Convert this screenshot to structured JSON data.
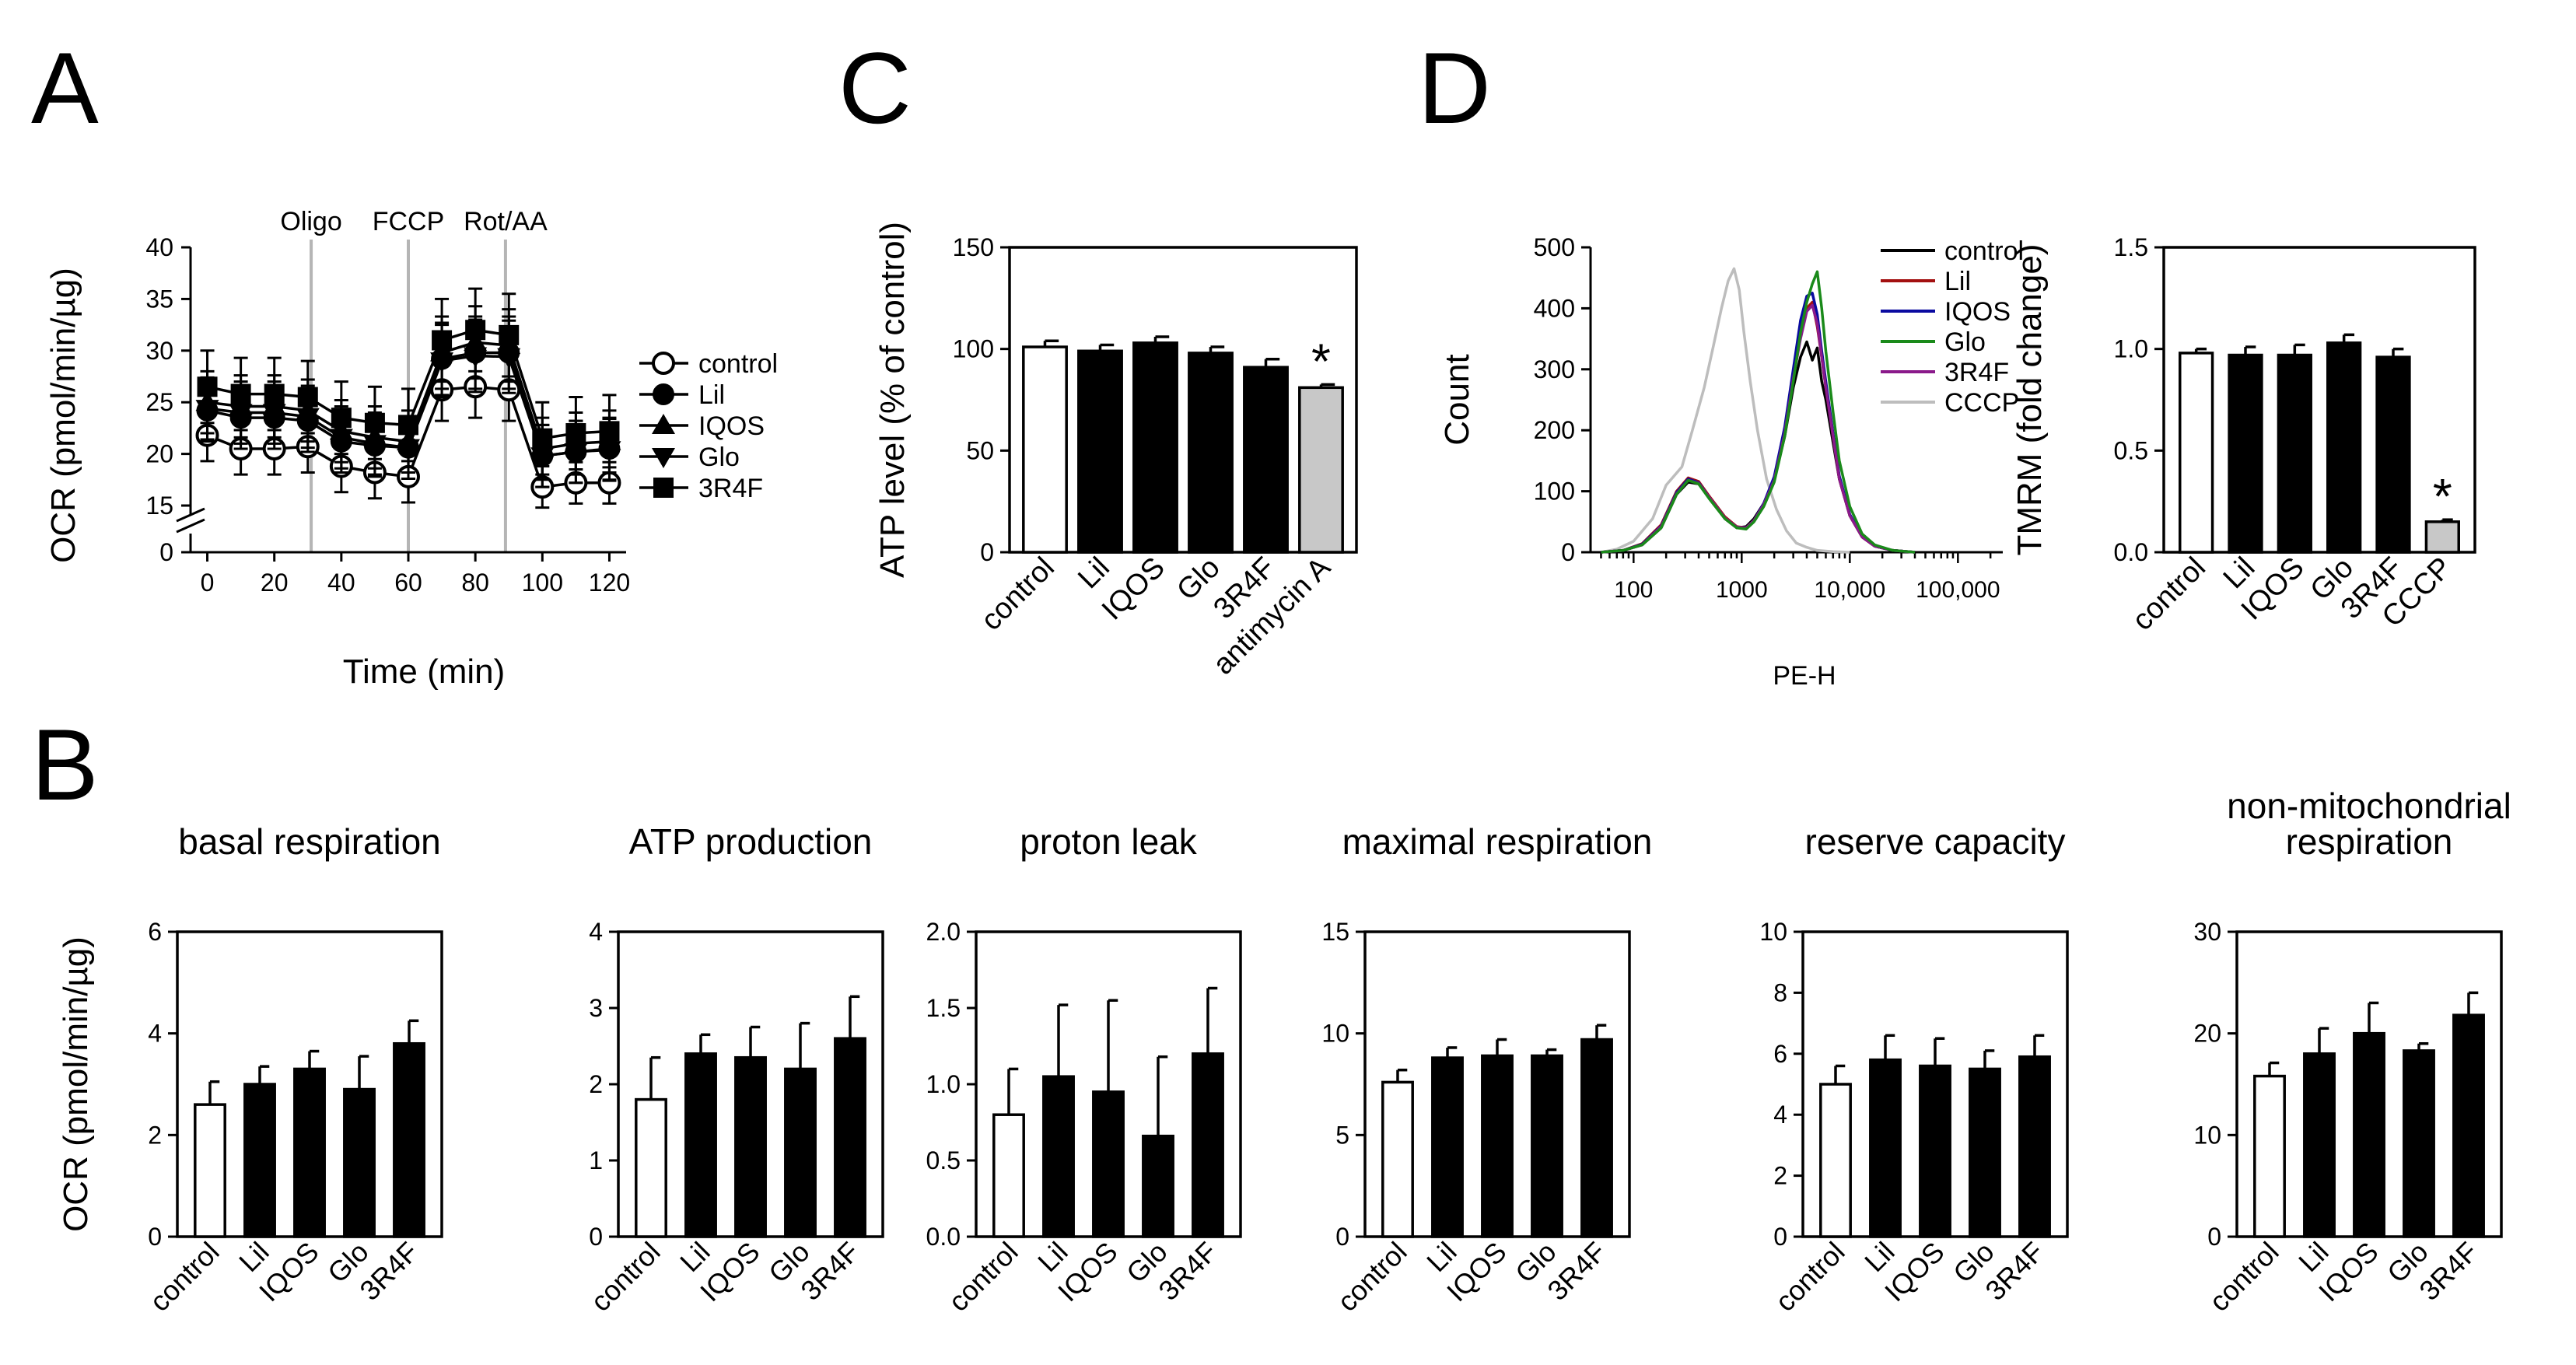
{
  "panels": {
    "A": "A",
    "B": "B",
    "C": "C",
    "D": "D"
  },
  "chart_data": [
    {
      "id": "A",
      "type": "line",
      "title": "",
      "xlabel": "Time (min)",
      "ylabel": "OCR (pmol/min/µg)",
      "x": [
        0,
        10,
        20,
        30,
        40,
        50,
        60,
        70,
        80,
        90,
        100,
        110,
        120
      ],
      "xticks": [
        0,
        20,
        40,
        60,
        80,
        100,
        120
      ],
      "xlim": [
        -5,
        125
      ],
      "yticks": [
        0,
        15,
        20,
        25,
        30,
        35,
        40
      ],
      "ylim": [
        0,
        40
      ],
      "ybreak": [
        0,
        13
      ],
      "annotations": [
        {
          "text": "Oligo",
          "x": 31
        },
        {
          "text": "FCCP",
          "x": 60
        },
        {
          "text": "Rot/AA",
          "x": 89
        }
      ],
      "series": [
        {
          "name": "control",
          "marker": "circle-open",
          "values": [
            21.8,
            20.5,
            20.5,
            20.7,
            18.8,
            18.2,
            17.8,
            26.2,
            26.5,
            26.2,
            16.8,
            17.2,
            17.2
          ],
          "errors": [
            2.5,
            2.5,
            2.5,
            2.5,
            2.5,
            2.5,
            2.5,
            3,
            3,
            3,
            2,
            2,
            2
          ]
        },
        {
          "name": "Lil",
          "marker": "circle-filled",
          "values": [
            24.2,
            23.5,
            23.5,
            23.2,
            21.2,
            20.8,
            20.6,
            29.2,
            29.8,
            29.8,
            19.8,
            20.2,
            20.5
          ],
          "errors": [
            3,
            3,
            3,
            3,
            3,
            3,
            3,
            3.5,
            3.5,
            3.5,
            3,
            3,
            3
          ]
        },
        {
          "name": "IQOS",
          "marker": "triangle-up",
          "values": [
            25.0,
            24.6,
            24.6,
            24.2,
            22.2,
            21.6,
            21.2,
            29.8,
            30.8,
            30.5,
            20.5,
            21.0,
            21.2
          ],
          "errors": [
            3,
            3,
            3,
            3,
            3,
            3,
            3,
            3.5,
            3.5,
            3.5,
            3,
            3,
            3
          ]
        },
        {
          "name": "Glo",
          "marker": "triangle-down",
          "values": [
            24.4,
            24.0,
            24.0,
            23.6,
            21.6,
            21.0,
            20.6,
            29.0,
            29.5,
            29.4,
            19.8,
            20.2,
            20.4
          ],
          "errors": [
            3,
            3,
            3,
            3,
            3,
            3,
            3,
            3.5,
            3.5,
            3.5,
            3,
            3,
            3
          ]
        },
        {
          "name": "3R4F",
          "marker": "square",
          "values": [
            26.5,
            25.8,
            25.8,
            25.5,
            23.5,
            23.0,
            22.8,
            31.0,
            32.0,
            31.5,
            21.5,
            22.0,
            22.2
          ],
          "errors": [
            3.5,
            3.5,
            3.5,
            3.5,
            3.5,
            3.5,
            3.5,
            4,
            4,
            4,
            3.5,
            3.5,
            3.5
          ]
        }
      ]
    },
    {
      "id": "C",
      "type": "bar",
      "ylabel": "ATP level (% of control)",
      "categories": [
        "control",
        "Lil",
        "IQOS",
        "Glo",
        "3R4F",
        "antimycin A"
      ],
      "values": [
        101,
        99,
        103,
        98,
        91,
        81
      ],
      "errors": [
        3,
        3,
        3,
        3,
        4,
        1.5
      ],
      "fills": [
        "open",
        "filled",
        "filled",
        "filled",
        "filled",
        "gray"
      ],
      "significant": [
        false,
        false,
        false,
        false,
        false,
        true
      ],
      "ylim": [
        0,
        150
      ],
      "yticks": [
        0,
        50,
        100,
        150
      ],
      "ytick_labels": [
        "0",
        "50",
        "100",
        "150"
      ]
    },
    {
      "id": "D1",
      "type": "line",
      "ylabel": "Count",
      "xlabel": "PE-H",
      "xscale": "log",
      "xlim": [
        40,
        260000
      ],
      "ylim": [
        0,
        500
      ],
      "yticks": [
        0,
        100,
        200,
        300,
        400,
        500
      ],
      "xticks": [
        100,
        1000,
        10000,
        100000
      ],
      "xtick_labels": [
        "100",
        "1000",
        "10,000",
        "100,000"
      ],
      "legend_position": "top-right",
      "series": [
        {
          "name": "control",
          "color": "#000000",
          "x": [
            50,
            80,
            120,
            180,
            250,
            320,
            400,
            500,
            700,
            900,
            1100,
            1300,
            1600,
            2000,
            2500,
            3000,
            3500,
            4000,
            4500,
            5000,
            5500,
            6000,
            7000,
            8000,
            10000,
            13000,
            17000,
            25000,
            40000
          ],
          "values": [
            0,
            3,
            12,
            40,
            95,
            115,
            112,
            90,
            55,
            40,
            42,
            55,
            80,
            120,
            190,
            270,
            320,
            345,
            315,
            335,
            280,
            250,
            180,
            120,
            60,
            25,
            10,
            3,
            0
          ]
        },
        {
          "name": "Lil",
          "color": "#a31010",
          "x": [
            50,
            80,
            120,
            180,
            250,
            320,
            400,
            500,
            700,
            900,
            1100,
            1300,
            1600,
            2000,
            2500,
            3000,
            3500,
            4000,
            4500,
            5000,
            5500,
            6000,
            7000,
            8000,
            10000,
            13000,
            17000,
            25000,
            40000
          ],
          "values": [
            0,
            3,
            14,
            45,
            100,
            122,
            116,
            92,
            58,
            42,
            40,
            52,
            78,
            120,
            200,
            290,
            360,
            400,
            410,
            370,
            320,
            270,
            190,
            120,
            60,
            25,
            10,
            3,
            0
          ]
        },
        {
          "name": "IQOS",
          "color": "#0a0aa0",
          "x": [
            50,
            80,
            120,
            180,
            250,
            320,
            400,
            500,
            700,
            900,
            1100,
            1300,
            1600,
            2000,
            2500,
            3000,
            3500,
            4000,
            4500,
            5000,
            5500,
            6000,
            7000,
            8000,
            10000,
            13000,
            17000,
            25000,
            40000
          ],
          "values": [
            0,
            3,
            13,
            43,
            98,
            120,
            114,
            90,
            56,
            41,
            40,
            52,
            80,
            124,
            205,
            300,
            380,
            420,
            425,
            390,
            330,
            280,
            195,
            125,
            62,
            26,
            10,
            3,
            0
          ]
        },
        {
          "name": "Glo",
          "color": "#1a8a1a",
          "x": [
            50,
            80,
            120,
            180,
            250,
            320,
            400,
            500,
            700,
            900,
            1100,
            1300,
            1600,
            2000,
            2500,
            3000,
            3500,
            4000,
            4500,
            5000,
            5500,
            6000,
            7000,
            8000,
            10000,
            13000,
            17000,
            25000,
            40000
          ],
          "values": [
            0,
            3,
            12,
            40,
            95,
            118,
            112,
            88,
            55,
            40,
            38,
            50,
            75,
            115,
            190,
            280,
            360,
            410,
            440,
            460,
            400,
            330,
            230,
            150,
            75,
            30,
            12,
            3,
            0
          ]
        },
        {
          "name": "3R4F",
          "color": "#8a1a8a",
          "x": [
            50,
            80,
            120,
            180,
            250,
            320,
            400,
            500,
            700,
            900,
            1100,
            1300,
            1600,
            2000,
            2500,
            3000,
            3500,
            4000,
            4500,
            5000,
            5500,
            6000,
            7000,
            8000,
            10000,
            13000,
            17000,
            25000,
            40000
          ],
          "values": [
            0,
            3,
            12,
            42,
            96,
            118,
            113,
            90,
            56,
            41,
            40,
            52,
            78,
            118,
            195,
            285,
            350,
            395,
            405,
            375,
            320,
            270,
            190,
            120,
            60,
            25,
            10,
            3,
            0
          ]
        },
        {
          "name": "CCCP",
          "color": "#bdbdbd",
          "x": [
            50,
            70,
            100,
            150,
            200,
            280,
            350,
            450,
            550,
            650,
            750,
            850,
            950,
            1050,
            1200,
            1400,
            1700,
            2100,
            2600,
            3200,
            4000,
            5000,
            7000,
            10000
          ],
          "values": [
            0,
            5,
            18,
            55,
            110,
            140,
            200,
            270,
            340,
            400,
            445,
            465,
            430,
            360,
            280,
            200,
            120,
            70,
            35,
            15,
            8,
            3,
            1,
            0
          ]
        }
      ]
    },
    {
      "id": "D2",
      "type": "bar",
      "ylabel": "TMRM (fold change)",
      "categories": [
        "control",
        "Lil",
        "IQOS",
        "Glo",
        "3R4F",
        "CCCP"
      ],
      "values": [
        0.98,
        0.97,
        0.97,
        1.03,
        0.96,
        0.15
      ],
      "errors": [
        0.02,
        0.04,
        0.05,
        0.04,
        0.04,
        0.01
      ],
      "fills": [
        "open",
        "filled",
        "filled",
        "filled",
        "filled",
        "gray"
      ],
      "significant": [
        false,
        false,
        false,
        false,
        false,
        true
      ],
      "ylim": [
        0,
        1.5
      ],
      "yticks": [
        0,
        0.5,
        1.0,
        1.5
      ],
      "ytick_labels": [
        "0.0",
        "0.5",
        "1.0",
        "1.5"
      ]
    },
    {
      "id": "B1",
      "type": "bar",
      "title": "basal respiration",
      "ylabel": "OCR (pmol/min/µg)",
      "categories": [
        "control",
        "Lil",
        "IQOS",
        "Glo",
        "3R4F"
      ],
      "values": [
        2.6,
        3.0,
        3.3,
        2.9,
        3.8
      ],
      "errors": [
        0.45,
        0.35,
        0.35,
        0.65,
        0.45
      ],
      "fills": [
        "open",
        "filled",
        "filled",
        "filled",
        "filled"
      ],
      "ylim": [
        0,
        6
      ],
      "yticks": [
        0,
        2,
        4,
        6
      ],
      "ytick_labels": [
        "0",
        "2",
        "4",
        "6"
      ]
    },
    {
      "id": "B2",
      "type": "bar",
      "title": "ATP production",
      "ylabel": "",
      "categories": [
        "control",
        "Lil",
        "IQOS",
        "Glo",
        "3R4F"
      ],
      "values": [
        1.8,
        2.4,
        2.35,
        2.2,
        2.6
      ],
      "errors": [
        0.55,
        0.25,
        0.4,
        0.6,
        0.55
      ],
      "fills": [
        "open",
        "filled",
        "filled",
        "filled",
        "filled"
      ],
      "ylim": [
        0,
        4
      ],
      "yticks": [
        0,
        1,
        2,
        3,
        4
      ],
      "ytick_labels": [
        "0",
        "1",
        "2",
        "3",
        "4"
      ]
    },
    {
      "id": "B3",
      "type": "bar",
      "title": "proton leak",
      "ylabel": "",
      "categories": [
        "control",
        "Lil",
        "IQOS",
        "Glo",
        "3R4F"
      ],
      "values": [
        0.8,
        1.05,
        0.95,
        0.66,
        1.2
      ],
      "errors": [
        0.3,
        0.47,
        0.6,
        0.52,
        0.43
      ],
      "fills": [
        "open",
        "filled",
        "filled",
        "filled",
        "filled"
      ],
      "ylim": [
        0,
        2
      ],
      "yticks": [
        0,
        0.5,
        1.0,
        1.5,
        2.0
      ],
      "ytick_labels": [
        "0.0",
        "0.5",
        "1.0",
        "1.5",
        "2.0"
      ]
    },
    {
      "id": "B4",
      "type": "bar",
      "title": "maximal respiration",
      "ylabel": "",
      "categories": [
        "control",
        "Lil",
        "IQOS",
        "Glo",
        "3R4F"
      ],
      "values": [
        7.6,
        8.8,
        8.9,
        8.9,
        9.7
      ],
      "errors": [
        0.6,
        0.5,
        0.8,
        0.3,
        0.7
      ],
      "fills": [
        "open",
        "filled",
        "filled",
        "filled",
        "filled"
      ],
      "ylim": [
        0,
        15
      ],
      "yticks": [
        0,
        5,
        10,
        15
      ],
      "ytick_labels": [
        "0",
        "5",
        "10",
        "15"
      ]
    },
    {
      "id": "B5",
      "type": "bar",
      "title": "reserve capacity",
      "ylabel": "",
      "categories": [
        "control",
        "Lil",
        "IQOS",
        "Glo",
        "3R4F"
      ],
      "values": [
        5.0,
        5.8,
        5.6,
        5.5,
        5.9
      ],
      "errors": [
        0.6,
        0.8,
        0.9,
        0.6,
        0.7
      ],
      "fills": [
        "open",
        "filled",
        "filled",
        "filled",
        "filled"
      ],
      "ylim": [
        0,
        10
      ],
      "yticks": [
        0,
        2,
        4,
        6,
        8,
        10
      ],
      "ytick_labels": [
        "0",
        "2",
        "4",
        "6",
        "8",
        "10"
      ]
    },
    {
      "id": "B6",
      "type": "bar",
      "title": [
        "non-mitochondrial",
        "respiration"
      ],
      "ylabel": "",
      "categories": [
        "control",
        "Lil",
        "IQOS",
        "Glo",
        "3R4F"
      ],
      "values": [
        15.8,
        18.0,
        20.0,
        18.3,
        21.8
      ],
      "errors": [
        1.3,
        2.5,
        3.0,
        0.7,
        2.2
      ],
      "fills": [
        "open",
        "filled",
        "filled",
        "filled",
        "filled"
      ],
      "ylim": [
        0,
        30
      ],
      "yticks": [
        0,
        10,
        20,
        30
      ],
      "ytick_labels": [
        "0",
        "10",
        "20",
        "30"
      ]
    }
  ]
}
